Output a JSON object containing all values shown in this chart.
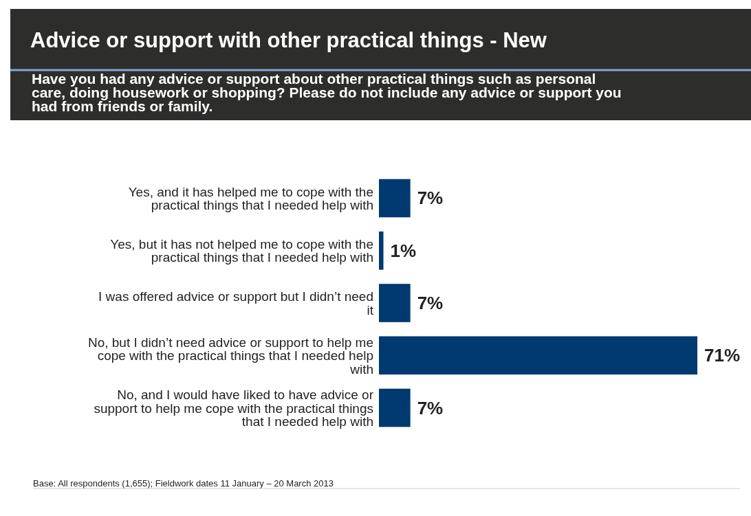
{
  "chart_data": {
    "type": "bar",
    "orientation": "horizontal",
    "title": "Advice or support with other practical things - New",
    "subtitle": "Have you had any advice or support about other practical things such as personal care, doing housework or shopping?  Please do not include any advice or support you had from friends or family.",
    "categories": [
      "Yes, and it has helped me to cope with the practical things that I needed help with",
      "Yes, but it has not helped me to cope with the practical things that I needed help with",
      "I was offered advice or support but I didn’t need it",
      "No, but I didn’t need advice or support to help me cope with the practical things that I needed help with",
      "No, and I would have liked to have advice or support to help me cope with the practical things that I needed help with"
    ],
    "values": [
      7,
      1,
      7,
      71,
      7
    ],
    "color": "#003a70",
    "value_labels": [
      "7%",
      "1%",
      "7%",
      "71%",
      "7%"
    ],
    "annotations": [
      "Base:   All respondents (1,655); Fieldwork dates 11 January – 20 March 2013"
    ]
  }
}
